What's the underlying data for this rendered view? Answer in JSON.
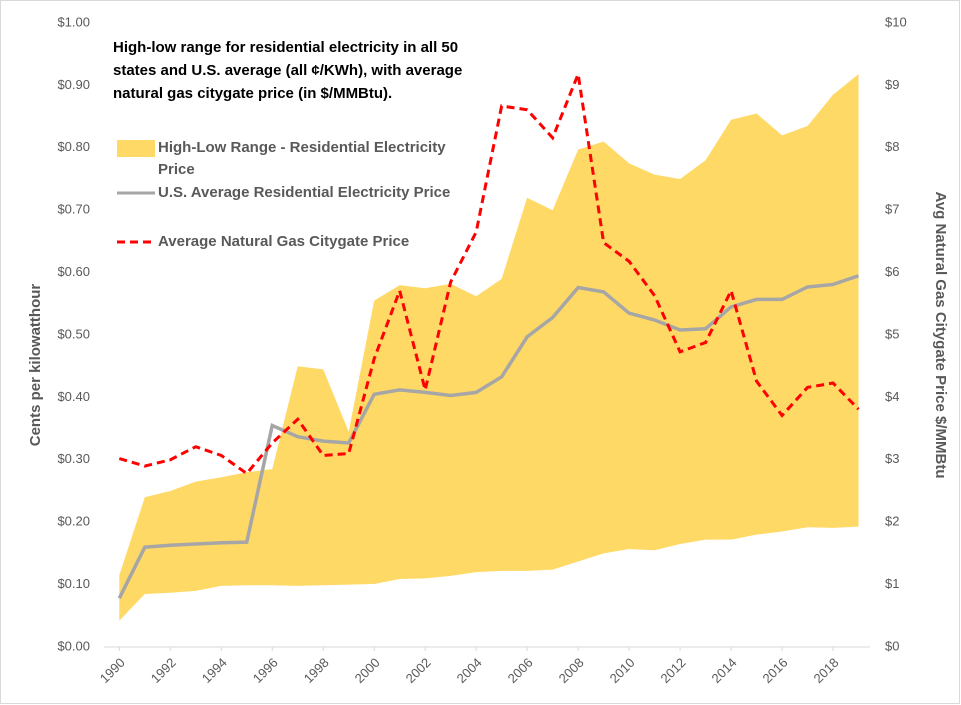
{
  "chart_data": {
    "type": "line",
    "title": "High-low range for residential electricity in all 50 states and U.S. average (all ¢/KWh), with average natural gas citygate price (in $/MMBtu).",
    "y_label": "Cents per kilowatthour",
    "y2_label": "Avg Natural Gas Citygate Price $/MMBtu",
    "x": [
      1990,
      1991,
      1992,
      1993,
      1994,
      1995,
      1996,
      1997,
      1998,
      1999,
      2000,
      2001,
      2002,
      2003,
      2004,
      2005,
      2006,
      2007,
      2008,
      2009,
      2010,
      2011,
      2012,
      2013,
      2014,
      2015,
      2016,
      2017,
      2018,
      2019
    ],
    "xlim": [
      1989.4,
      2019.45
    ],
    "xticks": [
      1990,
      1992,
      1994,
      1996,
      1998,
      2000,
      2002,
      2004,
      2006,
      2008,
      2010,
      2012,
      2014,
      2016,
      2018
    ],
    "ylim": [
      0,
      1
    ],
    "yticks": [
      {
        "value": 0,
        "label": "$0.00"
      },
      {
        "value": 0.1,
        "label": "$0.10"
      },
      {
        "value": 0.2,
        "label": "$0.20"
      },
      {
        "value": 0.3,
        "label": "$0.30"
      },
      {
        "value": 0.4,
        "label": "$0.40"
      },
      {
        "value": 0.5,
        "label": "$0.50"
      },
      {
        "value": 0.6,
        "label": "$0.60"
      },
      {
        "value": 0.7,
        "label": "$0.70"
      },
      {
        "value": 0.8,
        "label": "$0.80"
      },
      {
        "value": 0.9,
        "label": "$0.90"
      },
      {
        "value": 1,
        "label": "$1.00"
      }
    ],
    "y2lim": [
      0,
      10
    ],
    "y2ticks": [
      {
        "value": 0,
        "label": "$0"
      },
      {
        "value": 1,
        "label": "$1"
      },
      {
        "value": 2,
        "label": "$2"
      },
      {
        "value": 3,
        "label": "$3"
      },
      {
        "value": 4,
        "label": "$4"
      },
      {
        "value": 5,
        "label": "$5"
      },
      {
        "value": 6,
        "label": "$6"
      },
      {
        "value": 7,
        "label": "$7"
      },
      {
        "value": 8,
        "label": "$8"
      },
      {
        "value": 9,
        "label": "$9"
      },
      {
        "value": 10,
        "label": "$10"
      }
    ],
    "grid": false,
    "series": [
      {
        "name": "High-Low Range - Residential Electricity Price",
        "type": "range",
        "color": "#ffd966",
        "high": [
          0.115,
          0.24,
          0.25,
          0.265,
          0.272,
          0.28,
          0.285,
          0.45,
          0.445,
          0.345,
          0.555,
          0.58,
          0.575,
          0.582,
          0.562,
          0.59,
          0.72,
          0.7,
          0.797,
          0.81,
          0.775,
          0.757,
          0.75,
          0.78,
          0.845,
          0.855,
          0.82,
          0.835,
          0.885,
          0.918
        ],
        "low": [
          0.042,
          0.085,
          0.087,
          0.09,
          0.098,
          0.099,
          0.099,
          0.098,
          0.099,
          0.1,
          0.101,
          0.109,
          0.11,
          0.114,
          0.12,
          0.122,
          0.122,
          0.124,
          0.137,
          0.15,
          0.157,
          0.155,
          0.165,
          0.172,
          0.172,
          0.18,
          0.185,
          0.192,
          0.191,
          0.193
        ]
      },
      {
        "name": "U.S. Average Residential Electricity Price",
        "type": "line",
        "color": "#a6a6a6",
        "dash": false,
        "values": [
          0.078,
          0.16,
          0.163,
          0.165,
          0.167,
          0.168,
          0.355,
          0.337,
          0.33,
          0.327,
          0.405,
          0.412,
          0.408,
          0.403,
          0.408,
          0.433,
          0.497,
          0.528,
          0.576,
          0.569,
          0.535,
          0.524,
          0.508,
          0.51,
          0.545,
          0.557,
          0.557,
          0.577,
          0.581,
          0.595
        ]
      },
      {
        "name": "Average Natural Gas Citygate Price",
        "type": "line",
        "color": "#ff0000",
        "dash": true,
        "axis": "y2",
        "values": [
          3.02,
          2.9,
          3.0,
          3.21,
          3.07,
          2.78,
          3.27,
          3.65,
          3.07,
          3.1,
          4.62,
          5.71,
          4.12,
          5.85,
          6.65,
          8.67,
          8.61,
          8.16,
          9.18,
          6.48,
          6.18,
          5.63,
          4.73,
          4.88,
          5.71,
          4.26,
          3.71,
          4.16,
          4.23,
          3.81
        ]
      }
    ]
  }
}
